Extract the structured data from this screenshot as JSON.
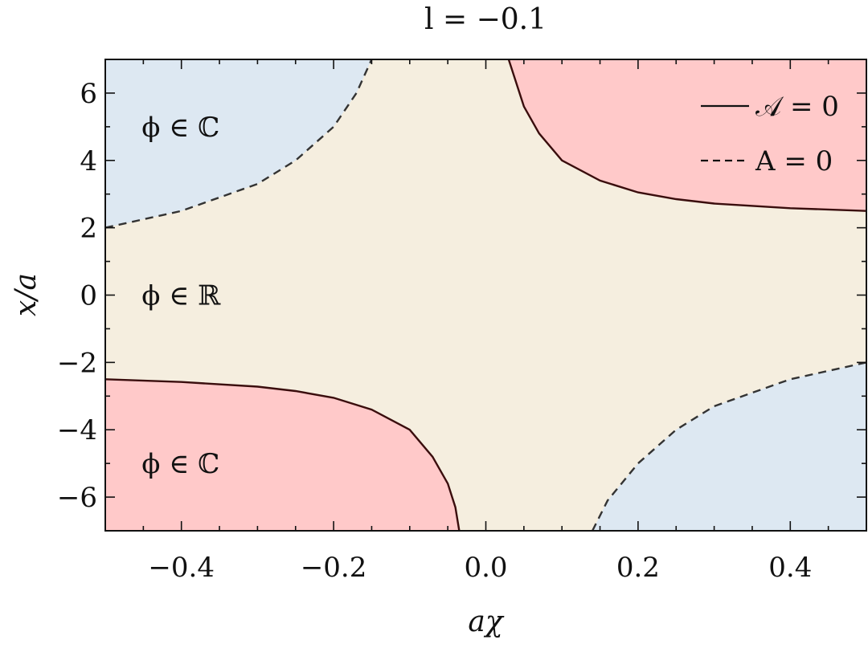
{
  "chart_data": {
    "type": "region",
    "title": "l = −0.1",
    "xlabel": "aχ",
    "ylabel": "x/a",
    "xlim": [
      -0.5,
      0.5
    ],
    "ylim": [
      -7,
      7
    ],
    "xticks": [
      -0.4,
      -0.2,
      0.0,
      0.2,
      0.4
    ],
    "xtick_labels": [
      "−0.4",
      "−0.2",
      "0.0",
      "0.2",
      "0.4"
    ],
    "yticks": [
      6,
      4,
      2,
      0,
      -2,
      -4,
      -6
    ],
    "ytick_labels": [
      "6",
      "4",
      "2",
      "0",
      "−2",
      "−4",
      "−6"
    ],
    "grid": false,
    "legend_position": "top-right",
    "colors": {
      "real_region": "#f5eedf",
      "complex_red": "#ffc9c9",
      "complex_blue": "#dde8f2",
      "solid_curve": "#3a0d0d",
      "dashed_curve": "#333333"
    },
    "regions": [
      {
        "label": "ϕ ∈ ℂ",
        "label_pos": [
          -0.41,
          5.0
        ],
        "fill": "complex_blue",
        "location": "top-left"
      },
      {
        "label": "ϕ ∈ ℝ",
        "label_pos": [
          -0.41,
          0.0
        ],
        "fill": "real_region",
        "location": "center"
      },
      {
        "label": "ϕ ∈ ℂ",
        "label_pos": [
          -0.41,
          -5.0
        ],
        "fill": "complex_red",
        "location": "bottom-left"
      }
    ],
    "series": [
      {
        "name": "𝒜 = 0",
        "style": "solid",
        "segments": [
          {
            "x": [
              0.03,
              0.04,
              0.05,
              0.07,
              0.1,
              0.15,
              0.2,
              0.25,
              0.3,
              0.4,
              0.5
            ],
            "y": [
              7.0,
              6.3,
              5.6,
              4.8,
              4.0,
              3.4,
              3.05,
              2.85,
              2.72,
              2.58,
              2.5
            ]
          },
          {
            "x": [
              -0.5,
              -0.4,
              -0.3,
              -0.25,
              -0.2,
              -0.15,
              -0.1,
              -0.07,
              -0.05,
              -0.04,
              -0.035
            ],
            "y": [
              -2.5,
              -2.58,
              -2.72,
              -2.85,
              -3.05,
              -3.4,
              -4.0,
              -4.8,
              -5.6,
              -6.3,
              -7.0
            ]
          }
        ]
      },
      {
        "name": "A = 0",
        "style": "dashed",
        "segments": [
          {
            "x": [
              -0.5,
              -0.4,
              -0.3,
              -0.25,
              -0.2,
              -0.17,
              -0.15
            ],
            "y": [
              2.0,
              2.5,
              3.3,
              4.0,
              5.0,
              6.0,
              7.0
            ]
          },
          {
            "x": [
              0.14,
              0.16,
              0.2,
              0.25,
              0.3,
              0.4,
              0.5
            ],
            "y": [
              -7.0,
              -6.1,
              -5.0,
              -4.0,
              -3.3,
              -2.5,
              -2.0
            ]
          }
        ]
      }
    ]
  }
}
